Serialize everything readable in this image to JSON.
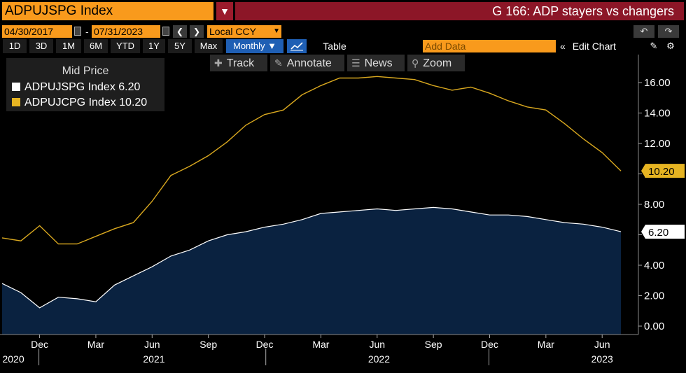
{
  "header": {
    "ticker": "ADPUJSPG Index",
    "title": "G 166: ADP stayers vs changers"
  },
  "dates": {
    "start": "04/30/2017",
    "end": "07/31/2023",
    "currency": "Local CCY"
  },
  "ranges": [
    "1D",
    "3D",
    "1M",
    "6M",
    "YTD",
    "1Y",
    "5Y",
    "Max"
  ],
  "periodicity": "Monthly",
  "toolbar": {
    "table_label": "Table",
    "add_data_placeholder": "Add Data",
    "edit_chart_label": "Edit Chart"
  },
  "tools": [
    "Track",
    "Annotate",
    "News",
    "Zoom"
  ],
  "legend": {
    "title": "Mid Price",
    "items": [
      {
        "label": "ADPUJSPG Index 6.20",
        "color": "#ffffff"
      },
      {
        "label": "ADPUJCPG Index 10.20",
        "color": "#e6b422"
      }
    ]
  },
  "colors": {
    "stayers_line": "#ffffff",
    "stayers_fill": "#0a2240",
    "changers_line": "#d9a81f",
    "accent_orange": "#f99a1c",
    "title_red": "#8c1627"
  },
  "chart_data": {
    "type": "area",
    "x": [
      "2020-10",
      "2020-11",
      "2020-12",
      "2021-01",
      "2021-02",
      "2021-03",
      "2021-04",
      "2021-05",
      "2021-06",
      "2021-07",
      "2021-08",
      "2021-09",
      "2021-10",
      "2021-11",
      "2021-12",
      "2022-01",
      "2022-02",
      "2022-03",
      "2022-04",
      "2022-05",
      "2022-06",
      "2022-07",
      "2022-08",
      "2022-09",
      "2022-10",
      "2022-11",
      "2022-12",
      "2023-01",
      "2023-02",
      "2023-03",
      "2023-04",
      "2023-05",
      "2023-06",
      "2023-07"
    ],
    "series": [
      {
        "name": "ADPUJSPG Index",
        "style": "area",
        "values": [
          2.8,
          2.2,
          1.2,
          1.9,
          1.8,
          1.6,
          2.7,
          3.3,
          3.9,
          4.6,
          5.0,
          5.6,
          6.0,
          6.2,
          6.5,
          6.7,
          7.0,
          7.4,
          7.5,
          7.6,
          7.7,
          7.6,
          7.7,
          7.8,
          7.7,
          7.5,
          7.3,
          7.3,
          7.2,
          7.0,
          6.8,
          6.7,
          6.5,
          6.2
        ],
        "last_label": "6.20"
      },
      {
        "name": "ADPUJCPG Index",
        "style": "line",
        "values": [
          5.8,
          5.6,
          6.6,
          5.4,
          5.4,
          5.9,
          6.4,
          6.8,
          8.2,
          9.9,
          10.5,
          11.2,
          12.1,
          13.2,
          13.9,
          14.2,
          15.2,
          15.8,
          16.3,
          16.3,
          16.4,
          16.3,
          16.2,
          15.8,
          15.5,
          15.7,
          15.3,
          14.8,
          14.4,
          14.2,
          13.3,
          12.3,
          11.4,
          10.2
        ],
        "last_label": "10.20"
      }
    ],
    "y_ticks": [
      "0.00",
      "2.00",
      "4.00",
      "6.00",
      "8.00",
      "10.00",
      "12.00",
      "14.00",
      "16.00"
    ],
    "ylim": [
      -0.4,
      17.6
    ],
    "x_month_ticks": [
      {
        "label": "Dec",
        "index": 2
      },
      {
        "label": "Mar",
        "index": 5
      },
      {
        "label": "Jun",
        "index": 8
      },
      {
        "label": "Sep",
        "index": 11
      },
      {
        "label": "Dec",
        "index": 14
      },
      {
        "label": "Mar",
        "index": 17
      },
      {
        "label": "Jun",
        "index": 20
      },
      {
        "label": "Sep",
        "index": 23
      },
      {
        "label": "Dec",
        "index": 26
      },
      {
        "label": "Mar",
        "index": 29
      },
      {
        "label": "Jun",
        "index": 32
      }
    ],
    "x_year_ticks": [
      {
        "label": "2020",
        "index": 0.6,
        "divider": 2.0
      },
      {
        "label": "2021",
        "index": 8.1,
        "divider": 14.1
      },
      {
        "label": "2022",
        "index": 20.1,
        "divider": 26.0
      },
      {
        "label": "2023",
        "index": 32.0
      }
    ],
    "grid": false,
    "legend_position": "top-left"
  }
}
